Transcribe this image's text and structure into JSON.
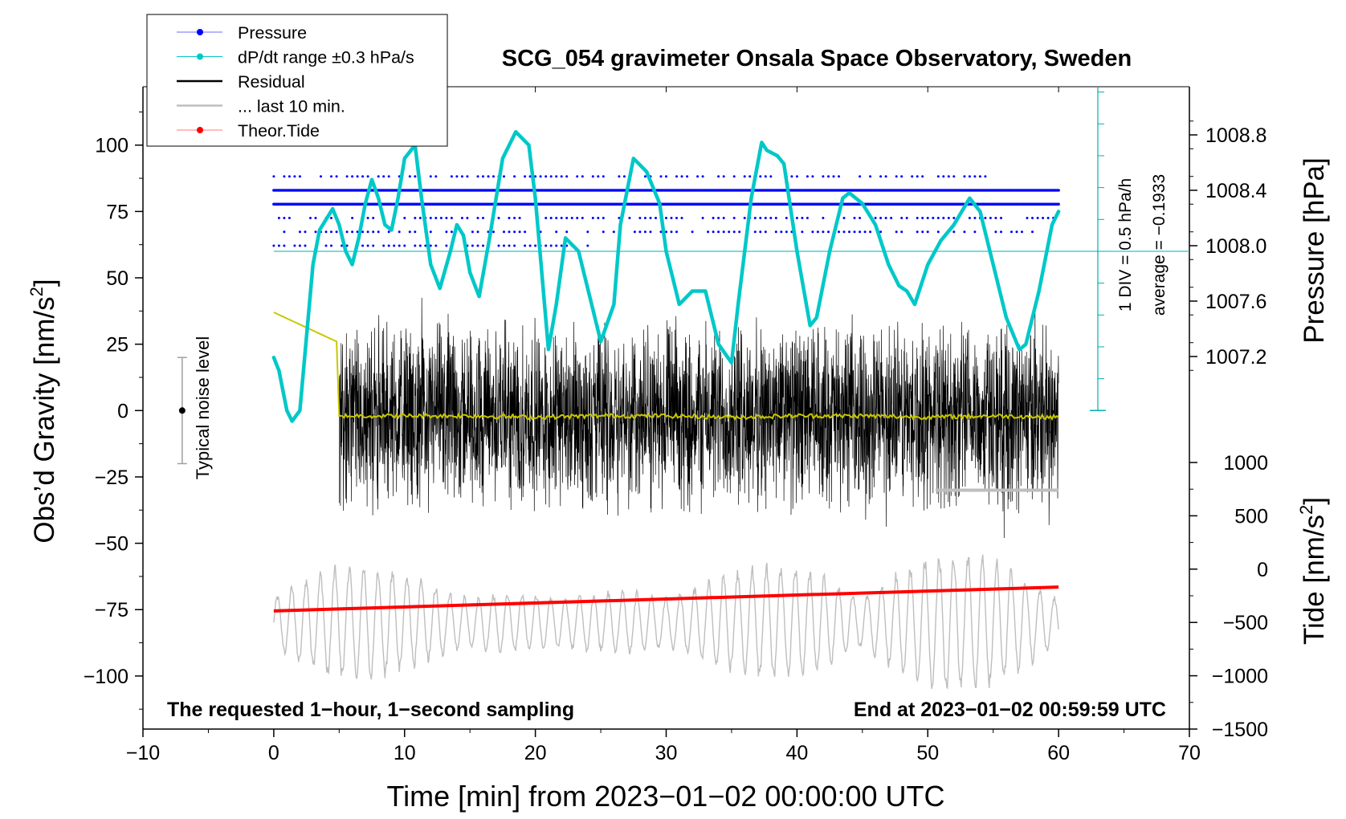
{
  "chart_data": {
    "type": "line",
    "title": "SCG_054 gravimeter Onsala Space Observatory, Sweden",
    "xlabel": "Time [min] from 2023−01−02 00:00:00 UTC",
    "ylabel_left": "Obs’d Gravity [nm/s²]",
    "ylabel_left_main": "Obs’d Gravity [nm/s",
    "ylabel_left_sup": "2",
    "ylabel_left_close": "]",
    "ylabel_right_pressure": "Pressure [hPa]",
    "ylabel_right_tide": "Tide [nm/s²]",
    "ylabel_right_tide_main": "Tide [nm/s",
    "ylabel_right_tide_sup": "2",
    "ylabel_right_tide_close": "]",
    "xlim": [
      -10,
      70
    ],
    "ylim": [
      -120,
      122
    ],
    "pressure_ylim": [
      1007.2,
      1008.8
    ],
    "tide_ylim": [
      -1500,
      1000
    ],
    "x_ticks": [
      -10,
      0,
      10,
      20,
      30,
      40,
      50,
      60,
      70
    ],
    "x_tick_labels": [
      "−10",
      "0",
      "10",
      "20",
      "30",
      "40",
      "50",
      "60",
      "70"
    ],
    "y_ticks": [
      100,
      75,
      50,
      25,
      0,
      -25,
      -50,
      -75,
      -100
    ],
    "y_tick_labels": [
      "100",
      "75",
      "50",
      "25",
      "0",
      "−25",
      "−50",
      "−75",
      "−100"
    ],
    "pressure_ticks": [
      1008.8,
      1008.4,
      1008.0,
      1007.6,
      1007.2
    ],
    "pressure_tick_labels": [
      "1008.8",
      "1008.4",
      "1008.0",
      "1007.6",
      "1007.2"
    ],
    "tide_ticks": [
      1000,
      500,
      0,
      -500,
      -1000,
      -1500
    ],
    "tide_tick_labels": [
      "1000",
      "500",
      "0",
      "−500",
      "−1000",
      "−1500"
    ],
    "legend": [
      {
        "label": "Pressure",
        "color": "#0000ff",
        "marker": true
      },
      {
        "label": "dP/dt range ±0.3 hPa/s",
        "color": "#00c8c8",
        "marker": true
      },
      {
        "label": "Residual",
        "color": "#000000",
        "marker": false
      },
      {
        "label": "... last 10 min.",
        "color": "#bebebe",
        "marker": false
      },
      {
        "label": "Theor.Tide",
        "color": "#ff0000",
        "marker": true
      }
    ],
    "legend_position": "top-left",
    "annotations": {
      "bottom_left": "The requested 1−hour, 1−second sampling",
      "bottom_right": "End at 2023−01−02 00:59:59 UTC",
      "noise": "Typical noise level",
      "div": "1 DIV = 0.5 hPa/h",
      "average": "average = −0.1933"
    },
    "noise_bar": {
      "x": -7,
      "center": 0,
      "low": -20,
      "high": 20
    },
    "dpdt_scale": {
      "x": 63,
      "ymin": 0,
      "ymax": 122,
      "center": 60,
      "tick_step": 12
    },
    "pressure": {
      "levels": [
        1008.5,
        1008.4,
        1008.3,
        1008.2,
        1008.1,
        1008.0
      ],
      "level_ranges": [
        [
          0,
          54.5
        ],
        [
          0,
          60
        ],
        [
          0,
          60
        ],
        [
          0,
          60
        ],
        [
          0,
          58
        ],
        [
          0,
          24.5
        ]
      ]
    },
    "dpdt": {
      "x": [
        0.0,
        0.4,
        1.0,
        1.4,
        2.0,
        3.0,
        3.5,
        4.5,
        5.0,
        5.5,
        6.0,
        6.5,
        7.0,
        7.5,
        8.0,
        8.5,
        9.0,
        9.5,
        10.0,
        10.8,
        11.3,
        12.0,
        12.7,
        13.5,
        14.0,
        14.5,
        15.0,
        15.7,
        16.5,
        17.5,
        18.5,
        19.5,
        20.0,
        21.0,
        21.6,
        22.3,
        23.3,
        24.3,
        25.0,
        26.0,
        26.5,
        27.5,
        28.5,
        29.5,
        30.0,
        31.0,
        32.0,
        33.0,
        34.0,
        35.0,
        35.5,
        36.5,
        37.3,
        37.7,
        38.5,
        39.0,
        40.0,
        41.0,
        41.5,
        42.5,
        43.5,
        44.0,
        45.0,
        46.0,
        47.0,
        47.8,
        48.4,
        49.0,
        50.0,
        51.0,
        52.0,
        53.2,
        54.0,
        55.0,
        56.0,
        57.0,
        57.5,
        58.5,
        59.5,
        60.0
      ],
      "y": [
        20,
        15,
        0,
        -4,
        0,
        55,
        68,
        76,
        70,
        60,
        55,
        65,
        78,
        87,
        80,
        70,
        68,
        80,
        95,
        100,
        80,
        55,
        46,
        60,
        70,
        66,
        52,
        43,
        65,
        95,
        105,
        100,
        80,
        23,
        40,
        65,
        60,
        40,
        26,
        40,
        70,
        95,
        90,
        78,
        60,
        40,
        45,
        45,
        25,
        18,
        40,
        80,
        101,
        98,
        96,
        93,
        60,
        32,
        35,
        60,
        80,
        82,
        78,
        70,
        55,
        47,
        45,
        40,
        55,
        64,
        70,
        80,
        75,
        55,
        35,
        23,
        25,
        45,
        70,
        75
      ]
    },
    "residual": {
      "start": 5,
      "end": 60,
      "amplitude": 40,
      "offset": -2
    },
    "yellow_residual": {
      "x": [
        0,
        4.8,
        5.0,
        5.5,
        10,
        15,
        20,
        25,
        30,
        35,
        40,
        45,
        50,
        55,
        60
      ],
      "y": [
        37,
        26,
        -2,
        -2,
        -2,
        -2,
        -2.5,
        -2,
        -2,
        -2.5,
        -2,
        -2,
        -2.5,
        -2,
        -2.5
      ]
    },
    "last10": {
      "x": [
        50.6,
        60
      ],
      "y": [
        -30,
        -30
      ]
    },
    "tide_gray": {
      "x_start": 0,
      "x_end": 60,
      "period_min": 1.1,
      "amplitude_nm": 700,
      "offset": -500
    },
    "tide_red": {
      "x": [
        0,
        60
      ],
      "y": [
        -75.5,
        -66.5
      ]
    }
  }
}
